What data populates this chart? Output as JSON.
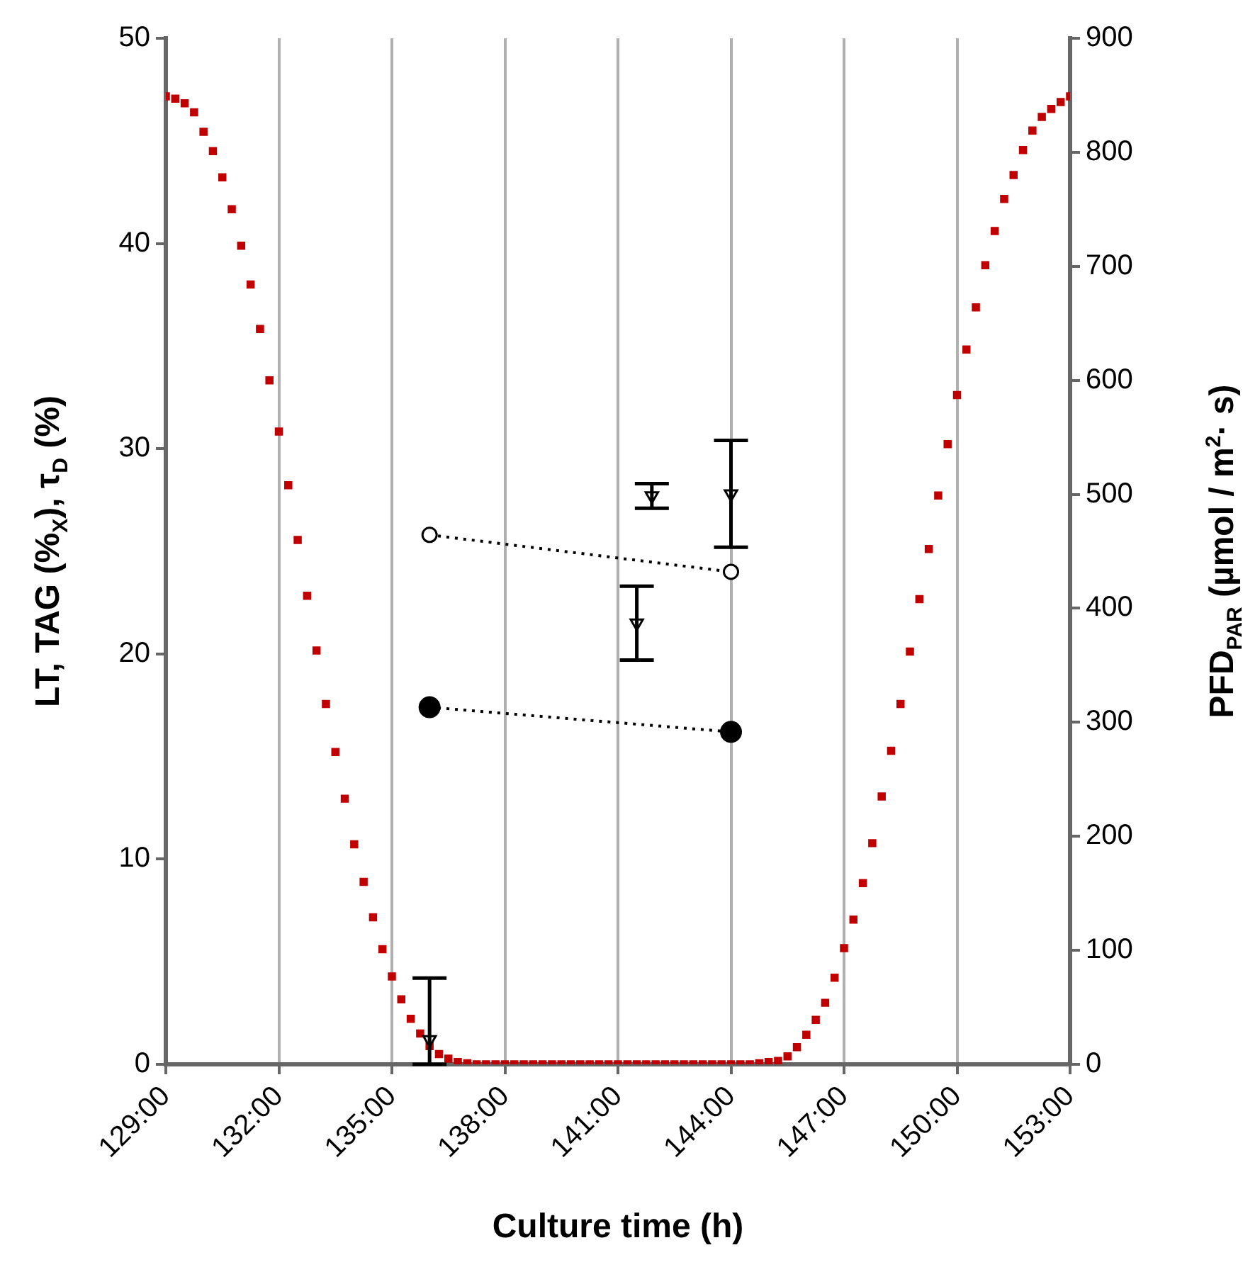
{
  "chart_data": {
    "type": "scatter",
    "xlabel": "Culture time (h)",
    "ylabel": "LT, TAG (%$_{X}$), τ$_{D}$ (%)",
    "y2label": "PFD$_{PAR}$ (µmol / m$^{2}$· s)",
    "xlim": [
      129,
      153
    ],
    "xticks": [
      {
        "value": 129,
        "label": "129:00"
      },
      {
        "value": 132,
        "label": "132:00"
      },
      {
        "value": 135,
        "label": "135:00"
      },
      {
        "value": 138,
        "label": "138:00"
      },
      {
        "value": 141,
        "label": "141:00"
      },
      {
        "value": 144,
        "label": "144:00"
      },
      {
        "value": 147,
        "label": "147:00"
      },
      {
        "value": 150,
        "label": "150:00"
      },
      {
        "value": 153,
        "label": "153:00"
      }
    ],
    "ylim": [
      0,
      50
    ],
    "yticks": [
      0,
      10,
      20,
      30,
      40,
      50
    ],
    "y2lim": [
      0,
      900
    ],
    "y2ticks": [
      0,
      100,
      200,
      300,
      400,
      500,
      600,
      700,
      800,
      900
    ],
    "grid": "x",
    "legend": false,
    "series": [
      {
        "axis": "y2",
        "marker": "square",
        "color": "#c00000",
        "x": [
          129,
          129.25,
          129.5,
          129.75,
          130,
          130.25,
          130.5,
          130.75,
          131,
          131.25,
          131.5,
          131.75,
          132,
          132.25,
          132.5,
          132.75,
          133,
          133.25,
          133.5,
          133.75,
          134,
          134.25,
          134.5,
          134.75,
          135,
          135.25,
          135.5,
          135.75,
          136,
          136.25,
          136.5,
          136.75,
          137,
          137.25,
          137.5,
          137.75,
          138,
          138.25,
          138.5,
          138.75,
          139,
          139.25,
          139.5,
          139.75,
          140,
          140.25,
          140.5,
          140.75,
          141,
          141.25,
          141.5,
          141.75,
          142,
          142.25,
          142.5,
          142.75,
          143,
          143.25,
          143.5,
          143.75,
          144,
          144.25,
          144.5,
          144.75,
          145,
          145.25,
          145.5,
          145.75,
          146,
          146.25,
          146.5,
          146.75,
          147,
          147.25,
          147.5,
          147.75,
          148,
          148.25,
          148.5,
          148.75,
          149,
          149.25,
          149.5,
          149.75,
          150,
          150.25,
          150.5,
          150.75,
          151,
          151.25,
          151.5,
          151.75,
          152,
          152.25,
          152.5,
          152.75,
          153
        ],
        "values": [
          849,
          847,
          843,
          835,
          818,
          801,
          778,
          750,
          718,
          684,
          645,
          600,
          555,
          508,
          460,
          411,
          363,
          316,
          274,
          233,
          193,
          160,
          129,
          101,
          77,
          57,
          40,
          27,
          16,
          9,
          5,
          2,
          1,
          0,
          0,
          0,
          0,
          0,
          0,
          0,
          0,
          0,
          0,
          0,
          0,
          0,
          0,
          0,
          0,
          0,
          0,
          0,
          0,
          0,
          0,
          0,
          0,
          0,
          0,
          0,
          0,
          0,
          0,
          1,
          2,
          3,
          7,
          15,
          26,
          39,
          54,
          76,
          102,
          127,
          159,
          194,
          235,
          275,
          316,
          362,
          408,
          452,
          499,
          544,
          587,
          627,
          664,
          701,
          731,
          759,
          780,
          802,
          819,
          831,
          838,
          844,
          849
        ]
      },
      {
        "type": "line",
        "marker": "circle",
        "line_style": "dotted",
        "color": "#000000",
        "x": [
          136,
          144
        ],
        "values": [
          25.8,
          24.0
        ]
      },
      {
        "type": "line",
        "marker": "circle",
        "line_style": "dotted",
        "color": "#000000",
        "x": [
          136,
          144
        ],
        "values": [
          17.4,
          16.2
        ]
      },
      {
        "marker": "triangle",
        "color": "#000000",
        "x": [
          136,
          141.5,
          141.9,
          144
        ],
        "values": [
          1.2,
          21.5,
          27.7,
          27.8
        ],
        "errors": [
          [
            0,
            4.2
          ],
          1.8,
          0.6,
          2.6
        ]
      }
    ]
  }
}
